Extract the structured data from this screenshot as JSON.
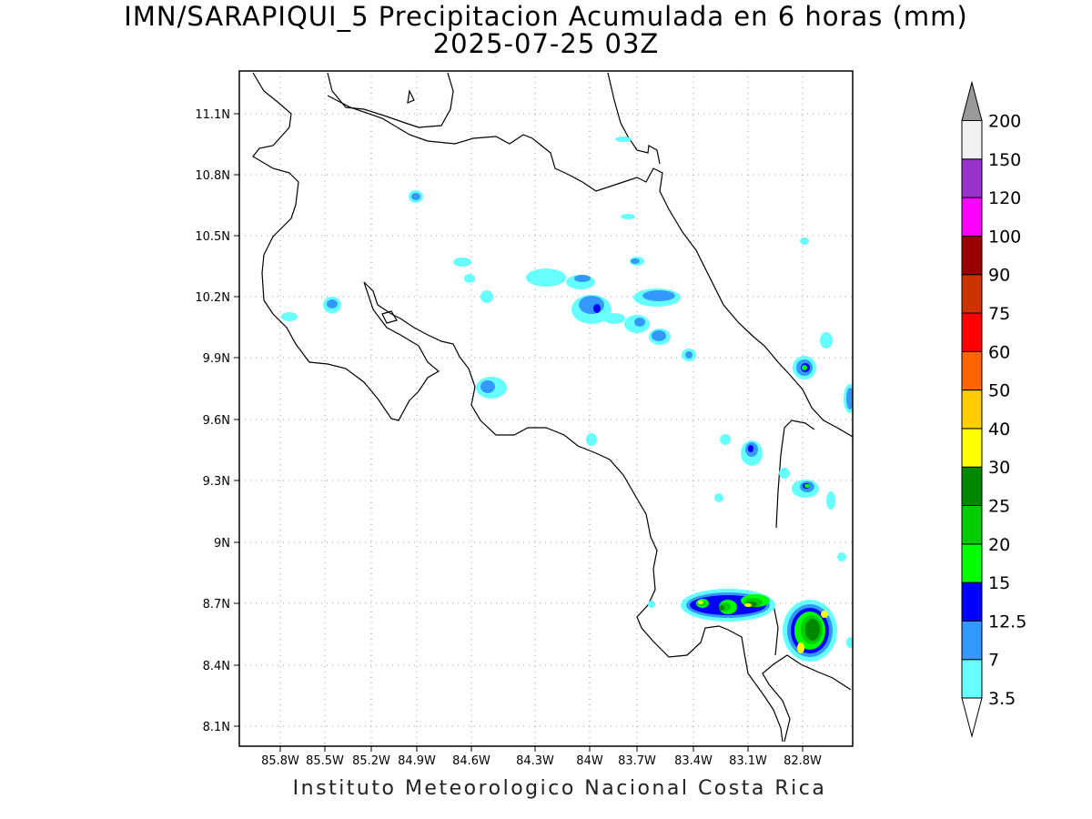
{
  "title": {
    "line1": "IMN/SARAPIQUI_5 Precipitacion Acumulada en 6 horas (mm)",
    "line2": "2025-07-25 03Z"
  },
  "footer": "Instituto Meteorologico Nacional Costa Rica",
  "map": {
    "lon_range": [
      -86.05,
      -82.4
    ],
    "lat_range": [
      8.0,
      11.3
    ],
    "lon_ticks": [
      "85.8W",
      "85.5W",
      "85.2W",
      "84.9W",
      "84.6W",
      "84.3W",
      "84W",
      "83.7W",
      "83.4W",
      "83.1W",
      "82.8W"
    ],
    "lat_ticks": [
      "11.1N",
      "10.8N",
      "10.5N",
      "10.2N",
      "9.9N",
      "9.6N",
      "9.3N",
      "9N",
      "8.7N",
      "8.4N",
      "8.1N"
    ],
    "grid": true
  },
  "colorbar": {
    "levels": [
      "3.5",
      "7",
      "12.5",
      "15",
      "20",
      "25",
      "30",
      "40",
      "50",
      "60",
      "75",
      "90",
      "100",
      "120",
      "150",
      "200"
    ],
    "colors": [
      "#66ffff",
      "#3399ff",
      "#0000ff",
      "#00ff00",
      "#00cc00",
      "#008800",
      "#ffff00",
      "#ffcc00",
      "#ff6600",
      "#ff0000",
      "#cc3300",
      "#990000",
      "#ff00ff",
      "#9933cc",
      "#f2f2f2",
      "#999999"
    ]
  }
}
